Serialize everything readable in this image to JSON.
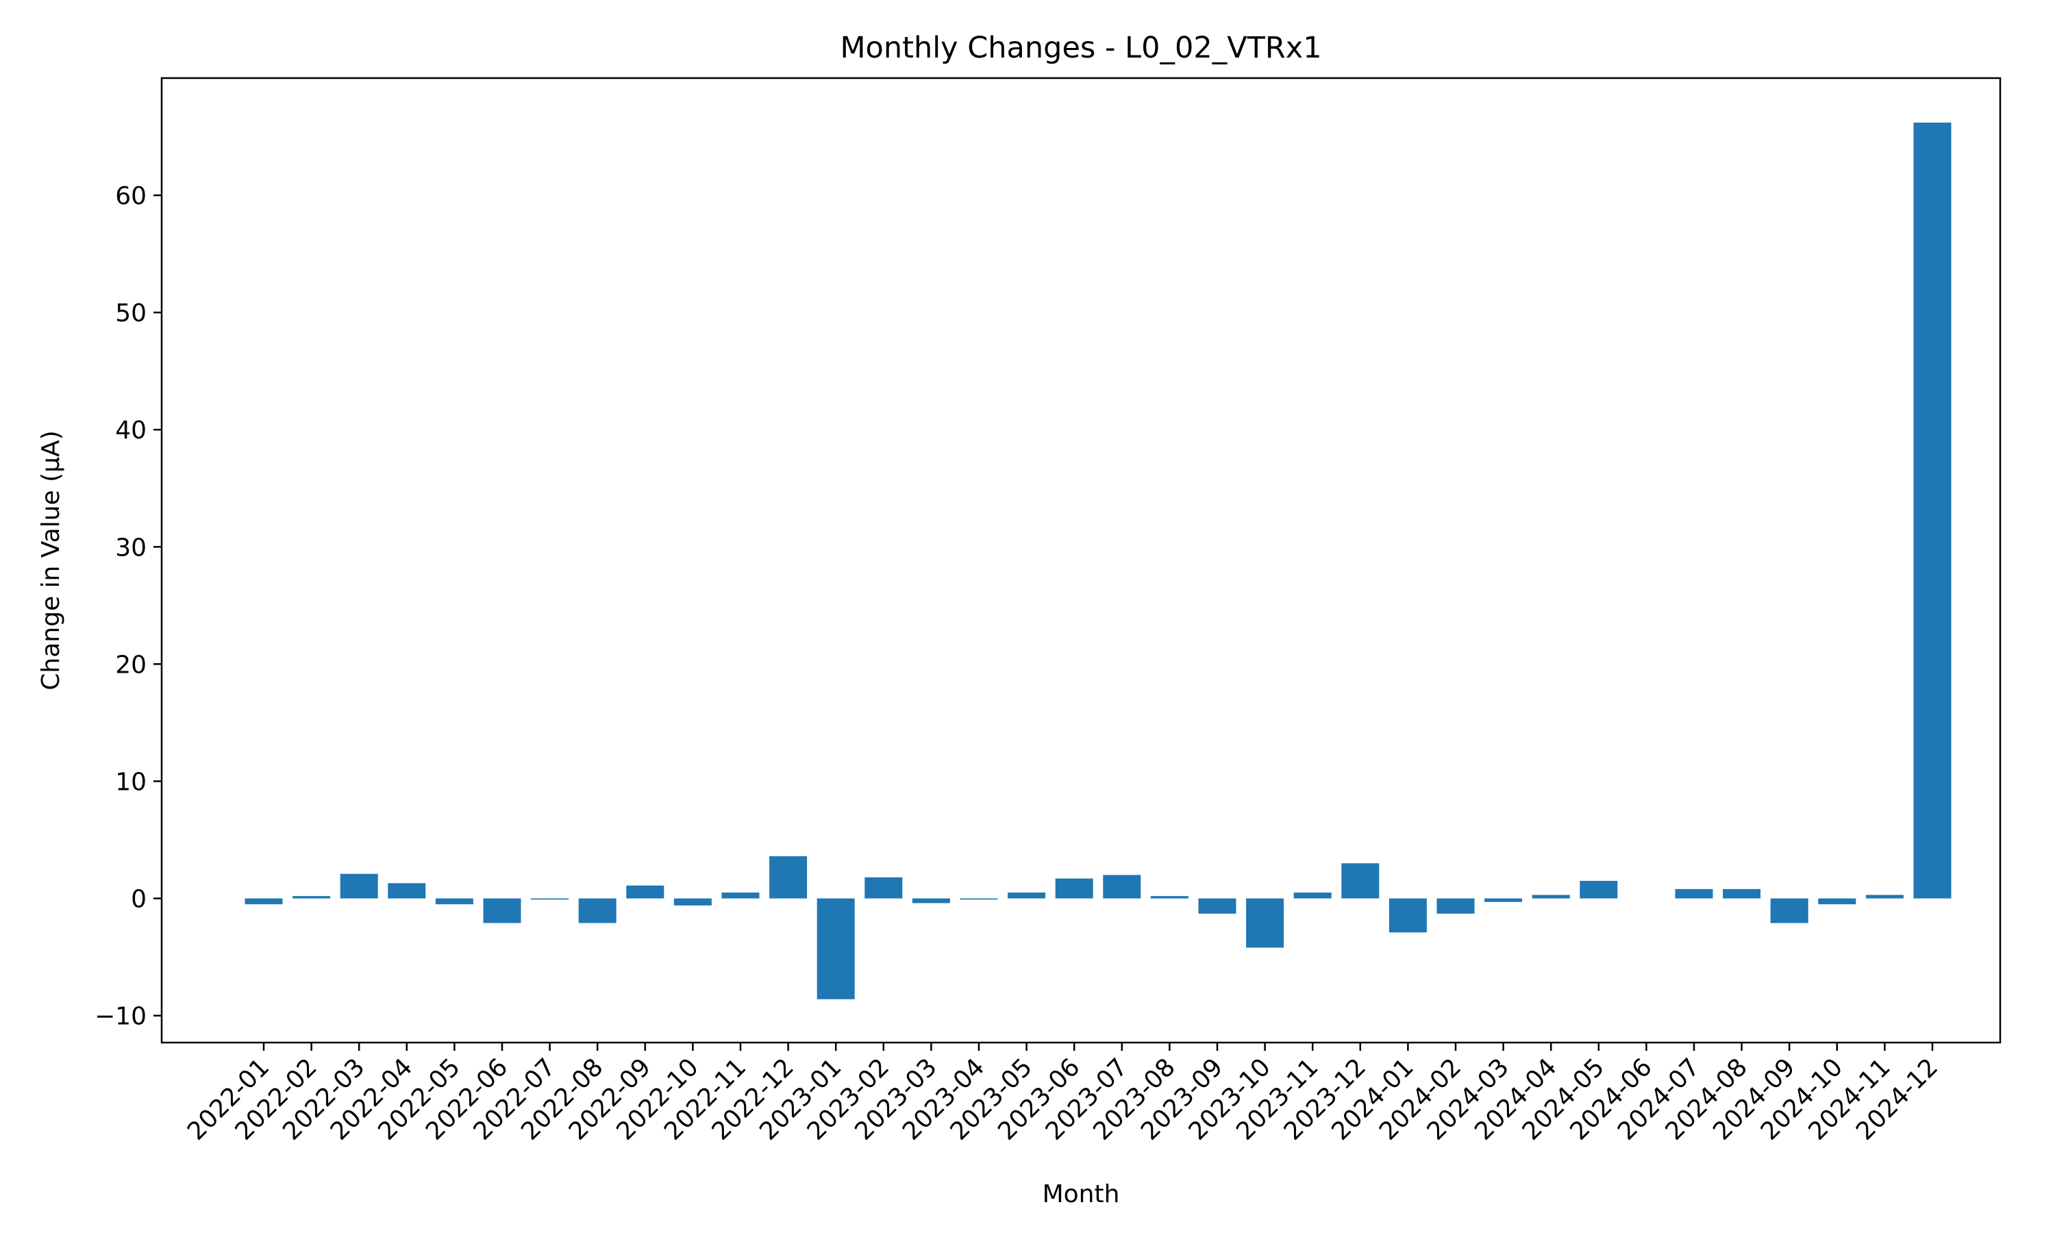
{
  "chart_data": {
    "type": "bar",
    "title": "Monthly Changes - L0_02_VTRx1",
    "xlabel": "Month",
    "ylabel": "Change in Value (μA)",
    "ylim": [
      -12.3,
      70
    ],
    "yticks": [
      -10,
      0,
      10,
      20,
      30,
      40,
      50,
      60
    ],
    "ytick_labels": [
      "−10",
      "0",
      "10",
      "20",
      "30",
      "40",
      "50",
      "60"
    ],
    "grid": false,
    "legend": "none",
    "bar_color": "#1f77b4",
    "categories": [
      "2022-01",
      "2022-02",
      "2022-03",
      "2022-04",
      "2022-05",
      "2022-06",
      "2022-07",
      "2022-08",
      "2022-09",
      "2022-10",
      "2022-11",
      "2022-12",
      "2023-01",
      "2023-02",
      "2023-03",
      "2023-04",
      "2023-05",
      "2023-06",
      "2023-07",
      "2023-08",
      "2023-09",
      "2023-10",
      "2023-11",
      "2023-12",
      "2024-01",
      "2024-02",
      "2024-03",
      "2024-04",
      "2024-05",
      "2024-06",
      "2024-07",
      "2024-08",
      "2024-09",
      "2024-10",
      "2024-11",
      "2024-12"
    ],
    "values": [
      -0.5,
      0.2,
      2.1,
      1.3,
      -0.5,
      -2.1,
      -0.1,
      -2.1,
      1.1,
      -0.6,
      0.5,
      3.6,
      -8.6,
      1.8,
      -0.4,
      -0.1,
      0.5,
      1.7,
      2.0,
      0.2,
      -1.3,
      -4.2,
      0.5,
      3.0,
      -2.9,
      -1.3,
      -0.3,
      0.3,
      1.5,
      0.0,
      0.8,
      0.8,
      -2.1,
      -0.5,
      0.3,
      66.2
    ]
  }
}
